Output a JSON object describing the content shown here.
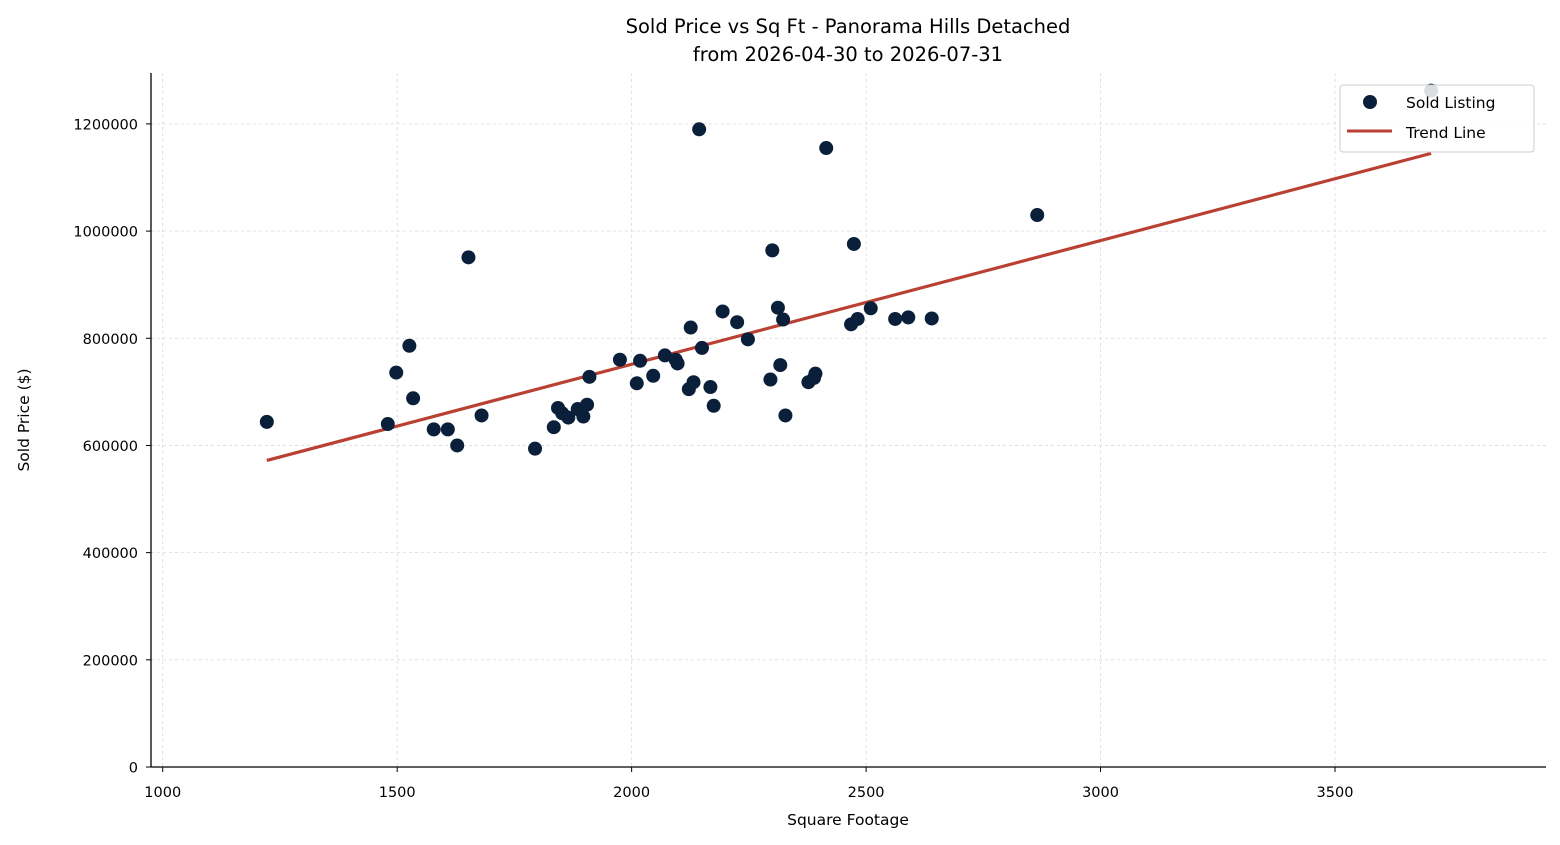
{
  "chart_data": {
    "type": "scatter",
    "title": "Sold Price vs Sq Ft - Panorama Hills Detached",
    "subtitle": "from 2026-04-30 to 2026-07-31",
    "xlabel": "Square Footage",
    "ylabel": "Sold Price ($)",
    "xlim": [
      975,
      3950
    ],
    "ylim": [
      0,
      1295000
    ],
    "x_ticks": [
      1000,
      1500,
      2000,
      2500,
      3000,
      3500
    ],
    "y_ticks": [
      0,
      200000,
      400000,
      600000,
      800000,
      1000000,
      1200000
    ],
    "grid": true,
    "legend_position": "top-right",
    "colors": {
      "points": "#0a1f3a",
      "trend": "#b94032",
      "grid": "#d9d9d9"
    },
    "series": [
      {
        "name": "Sold Listing",
        "kind": "scatter",
        "points": [
          [
            1222,
            644000
          ],
          [
            1480,
            640000
          ],
          [
            1498,
            736000
          ],
          [
            1526,
            786000
          ],
          [
            1534,
            688000
          ],
          [
            1578,
            630000
          ],
          [
            1608,
            630000
          ],
          [
            1628,
            600000
          ],
          [
            1652,
            951000
          ],
          [
            1680,
            656000
          ],
          [
            1794,
            594000
          ],
          [
            1834,
            634000
          ],
          [
            1843,
            670000
          ],
          [
            1852,
            660000
          ],
          [
            1865,
            652000
          ],
          [
            1885,
            668000
          ],
          [
            1897,
            654000
          ],
          [
            1905,
            676000
          ],
          [
            1910,
            728000
          ],
          [
            1975,
            760000
          ],
          [
            2011,
            716000
          ],
          [
            2018,
            758000
          ],
          [
            2046,
            730000
          ],
          [
            2071,
            768000
          ],
          [
            2094,
            760000
          ],
          [
            2098,
            753000
          ],
          [
            2122,
            705000
          ],
          [
            2126,
            820000
          ],
          [
            2132,
            718000
          ],
          [
            2144,
            1190000
          ],
          [
            2150,
            782000
          ],
          [
            2168,
            709000
          ],
          [
            2175,
            674000
          ],
          [
            2194,
            850000
          ],
          [
            2225,
            830000
          ],
          [
            2248,
            798000
          ],
          [
            2296,
            723000
          ],
          [
            2300,
            964000
          ],
          [
            2312,
            857000
          ],
          [
            2317,
            750000
          ],
          [
            2323,
            835000
          ],
          [
            2328,
            656000
          ],
          [
            2377,
            718000
          ],
          [
            2389,
            726000
          ],
          [
            2392,
            734000
          ],
          [
            2415,
            1155000
          ],
          [
            2468,
            826000
          ],
          [
            2474,
            976000
          ],
          [
            2482,
            836000
          ],
          [
            2510,
            856000
          ],
          [
            2562,
            836000
          ],
          [
            2590,
            839000
          ],
          [
            2640,
            837000
          ],
          [
            2865,
            1030000
          ],
          [
            3705,
            1262000
          ]
        ]
      },
      {
        "name": "Trend Line",
        "kind": "line",
        "points": [
          [
            1222,
            572000
          ],
          [
            3705,
            1145000
          ]
        ]
      }
    ]
  }
}
